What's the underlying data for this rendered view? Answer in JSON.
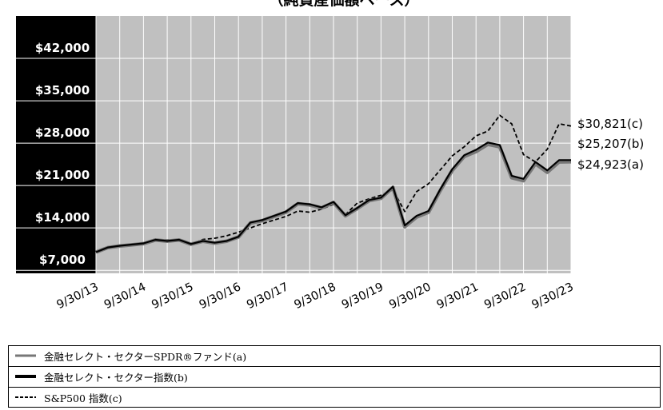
{
  "chart_data": {
    "type": "line",
    "title": "（純資産価額ベース）",
    "x_tick_labels": [
      "9/30/13",
      "9/30/14",
      "9/30/15",
      "9/30/16",
      "9/30/17",
      "9/30/18",
      "9/30/19",
      "9/30/20",
      "9/30/21",
      "9/30/22",
      "9/30/23"
    ],
    "y_tick_labels": [
      "$7,000",
      "$14,000",
      "$21,000",
      "$28,000",
      "$35,000",
      "$42,000"
    ],
    "y_tick_values": [
      7000,
      14000,
      21000,
      28000,
      35000,
      42000
    ],
    "ylim": [
      6500,
      49000
    ],
    "xlim": [
      0,
      40
    ],
    "x_unit_note": "quarters since 9/30/13",
    "series": [
      {
        "name": "金融セレクト・セクターSPDR®ファンド(a)",
        "style": "thick-gray",
        "color": "#777777",
        "end_label": "$24,923(a)",
        "x": [
          0,
          1,
          2,
          3,
          4,
          5,
          6,
          7,
          8,
          9,
          10,
          11,
          12,
          13,
          14,
          15,
          16,
          17,
          18,
          19,
          20,
          21,
          22,
          23,
          24,
          25,
          26,
          27,
          28,
          29,
          30,
          31,
          32,
          33,
          34,
          35,
          36,
          37,
          38,
          39,
          40
        ],
        "values": [
          10000,
          10750,
          11000,
          11200,
          11400,
          12000,
          11800,
          12000,
          11300,
          11800,
          11500,
          11800,
          12500,
          14800,
          15200,
          15900,
          16600,
          18000,
          17800,
          17300,
          18200,
          16000,
          17200,
          18500,
          18900,
          20700,
          14200,
          15800,
          16600,
          20200,
          23500,
          25800,
          26600,
          27800,
          27400,
          22300,
          21800,
          24600,
          23200,
          24900,
          24923
        ]
      },
      {
        "name": "金融セレクト・セクター指数(b)",
        "style": "thick-black",
        "color": "#000000",
        "end_label": "$25,207(b)",
        "x": [
          0,
          1,
          2,
          3,
          4,
          5,
          6,
          7,
          8,
          9,
          10,
          11,
          12,
          13,
          14,
          15,
          16,
          17,
          18,
          19,
          20,
          21,
          22,
          23,
          24,
          25,
          26,
          27,
          28,
          29,
          30,
          31,
          32,
          33,
          34,
          35,
          36,
          37,
          38,
          39,
          40
        ],
        "values": [
          10000,
          10780,
          11050,
          11250,
          11450,
          12050,
          11850,
          12050,
          11350,
          11850,
          11550,
          11850,
          12550,
          14900,
          15300,
          16000,
          16700,
          18100,
          17900,
          17400,
          18300,
          16100,
          17300,
          18600,
          19000,
          20800,
          14400,
          16000,
          16800,
          20400,
          23700,
          26000,
          26900,
          28100,
          27700,
          22600,
          22100,
          24900,
          23500,
          25200,
          25207
        ]
      },
      {
        "name": "S&P500 指数(c)",
        "style": "dashed-black",
        "color": "#000000",
        "end_label": "$30,821(c)",
        "x": [
          0,
          1,
          2,
          3,
          4,
          5,
          6,
          7,
          8,
          9,
          10,
          11,
          12,
          13,
          14,
          15,
          16,
          17,
          18,
          19,
          20,
          21,
          22,
          23,
          24,
          25,
          26,
          27,
          28,
          29,
          30,
          31,
          32,
          33,
          34,
          35,
          36,
          37,
          38,
          39,
          40
        ],
        "values": [
          10000,
          10700,
          11000,
          11300,
          11500,
          12000,
          12000,
          12100,
          11300,
          12100,
          12300,
          12700,
          13300,
          14000,
          14700,
          15300,
          15900,
          16800,
          16600,
          17100,
          17900,
          16200,
          18100,
          18800,
          19400,
          20300,
          16700,
          20000,
          21300,
          23600,
          25900,
          27400,
          29200,
          30000,
          32600,
          31200,
          26100,
          24900,
          27000,
          31200,
          30821
        ]
      }
    ],
    "legend": {
      "position": "bottom"
    },
    "grid": true
  },
  "legend_items": [
    {
      "label": "金融セレクト・セクターSPDR®ファンド(a)",
      "style": "thick-gray"
    },
    {
      "label": "金融セレクト・セクター指数(b)",
      "style": "thick-black"
    },
    {
      "label": "S&P500 指数(c)",
      "style": "dashed-black"
    }
  ],
  "colors": {
    "plot_bg": "#c0c0c0",
    "axis_bg": "#000000",
    "gray_line": "#777777",
    "black_line": "#000000"
  }
}
